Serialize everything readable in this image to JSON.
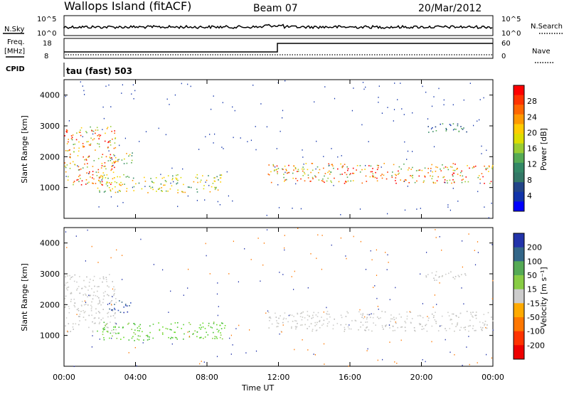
{
  "header": {
    "station": "Wallops Island (fitACF)",
    "beam": "Beam 07",
    "date": "20/Mar/2012"
  },
  "top_panels": {
    "nsky_label": "N.Sky",
    "nsky_ticks": [
      "10^5",
      "10^0"
    ],
    "nsearch_label": "N.Search",
    "nsearch_ticks": [
      "10^5",
      "10^0"
    ],
    "freq_label": "Freq.",
    "freq_unit": "[MHz]",
    "freq_ticks": [
      "18",
      "8"
    ],
    "nave_label": "Nave",
    "nave_ticks": [
      "60",
      "0"
    ],
    "cpid_label": "CPID",
    "cpid_text": "tau (fast) 503"
  },
  "chart_data": [
    {
      "type": "heatmap",
      "title": "",
      "ylabel": "Slant Range [km]",
      "xlabel": "",
      "colorbar_label": "Power [dB]",
      "colorbar_ticks": [
        "28",
        "24",
        "20",
        "16",
        "12",
        "8",
        "4"
      ],
      "colorbar_colors": [
        "#ff0000",
        "#ff3300",
        "#ff6600",
        "#ff9900",
        "#ffcc00",
        "#dddd00",
        "#99cc33",
        "#55aa55",
        "#338866",
        "#337766",
        "#224488",
        "#1133aa",
        "#0000ff"
      ],
      "y_ticks": [
        "4000",
        "3000",
        "2000",
        "1000"
      ],
      "ylim": [
        0,
        4500
      ],
      "regions": [
        {
          "t0": 0.0,
          "t1": 2.9,
          "r0": 1100,
          "r1": 3000,
          "level": "high"
        },
        {
          "t0": 1.8,
          "t1": 9.0,
          "r0": 850,
          "r1": 1450,
          "level": "mid"
        },
        {
          "t0": 2.4,
          "t1": 3.8,
          "r0": 1750,
          "r1": 2150,
          "level": "mid"
        },
        {
          "t0": 11.4,
          "t1": 24.0,
          "r0": 1150,
          "r1": 1800,
          "level": "high"
        },
        {
          "t0": 20.0,
          "t1": 22.5,
          "r0": 2800,
          "r1": 3100,
          "level": "low"
        }
      ]
    },
    {
      "type": "heatmap",
      "title": "",
      "ylabel": "Slant Range [km]",
      "xlabel": "Time UT",
      "colorbar_label": "Velocity [m s⁻¹]",
      "colorbar_ticks": [
        "200",
        "100",
        "50",
        "15",
        "-15",
        "-50",
        "-100",
        "-200"
      ],
      "colorbar_colors": [
        "#2233aa",
        "#336688",
        "#55aa55",
        "#88cc44",
        "#cccccc",
        "#ffaa00",
        "#ff7700",
        "#ff3300",
        "#ee0000"
      ],
      "y_ticks": [
        "4000",
        "3000",
        "2000",
        "1000"
      ],
      "x_ticks": [
        "00:00",
        "04:00",
        "08:00",
        "12:00",
        "16:00",
        "20:00",
        "00:00"
      ],
      "xlim": [
        0,
        24
      ],
      "ylim": [
        0,
        4500
      ],
      "regions": [
        {
          "t0": 0.0,
          "t1": 2.9,
          "r0": 1100,
          "r1": 3000,
          "level": "grey"
        },
        {
          "t0": 1.8,
          "t1": 9.0,
          "r0": 850,
          "r1": 1450,
          "level": "green"
        },
        {
          "t0": 2.4,
          "t1": 3.8,
          "r0": 1750,
          "r1": 2150,
          "level": "blue"
        },
        {
          "t0": 11.4,
          "t1": 24.0,
          "r0": 1150,
          "r1": 1800,
          "level": "grey"
        },
        {
          "t0": 20.0,
          "t1": 22.5,
          "r0": 2800,
          "r1": 3100,
          "level": "grey"
        }
      ]
    }
  ]
}
